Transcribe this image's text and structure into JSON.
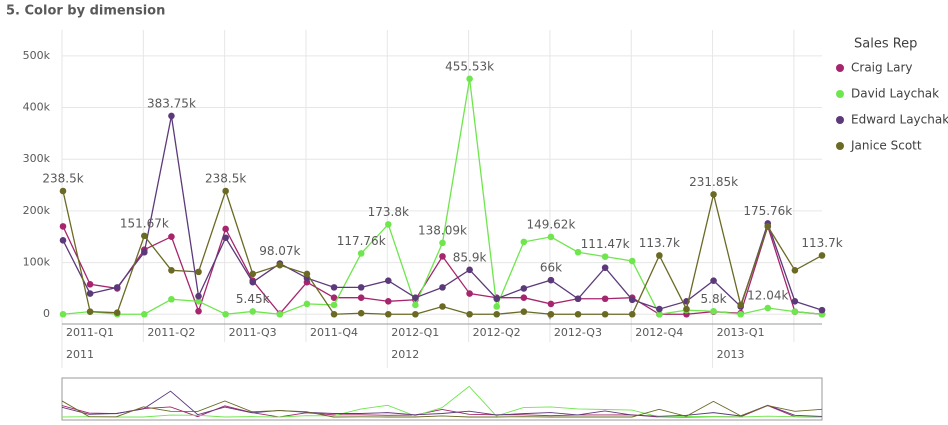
{
  "chart_data": {
    "type": "line",
    "title": "5. Color by dimension",
    "legend_title": "Sales Rep",
    "legend_position": "right",
    "grid": true,
    "categories": [
      "2011-Q1",
      null,
      null,
      "2011-Q2",
      null,
      null,
      "2011-Q3",
      null,
      null,
      "2011-Q4",
      null,
      null,
      "2012-Q1",
      null,
      null,
      "2012-Q2",
      null,
      null,
      "2012-Q3",
      null,
      null,
      "2012-Q4",
      null,
      null,
      "2013-Q1",
      null,
      null,
      null,
      null
    ],
    "category_years": [
      "2011",
      null,
      null,
      null,
      null,
      null,
      null,
      null,
      null,
      null,
      null,
      null,
      "2012",
      null,
      null,
      null,
      null,
      null,
      null,
      null,
      null,
      null,
      null,
      null,
      "2013",
      null,
      null,
      null,
      null
    ],
    "ylim": [
      -15000,
      550000
    ],
    "yticks": [
      0,
      {
        "value": 100000,
        "label": "100k"
      },
      {
        "value": 200000,
        "label": "200k"
      },
      {
        "value": 300000,
        "label": "300k"
      },
      {
        "value": 400000,
        "label": "400k"
      },
      {
        "value": 500000,
        "label": "500k"
      }
    ],
    "series": [
      {
        "name": "Craig Lary",
        "color": "#a6256d",
        "values": [
          170000,
          58000,
          50000,
          125000,
          150000,
          6000,
          165000,
          65000,
          1000,
          62000,
          32000,
          32000,
          25000,
          28000,
          112000,
          40000,
          32000,
          32000,
          20000,
          30000,
          30000,
          32000,
          0,
          0,
          5000,
          2000,
          170000,
          5000,
          0
        ],
        "value_labels": [
          null,
          null,
          null,
          null,
          null,
          null,
          null,
          null,
          null,
          null,
          null,
          null,
          null,
          null,
          null,
          null,
          null,
          null,
          null,
          null,
          null,
          null,
          null,
          null,
          null,
          null,
          null,
          null,
          null
        ]
      },
      {
        "name": "David Laychak",
        "color": "#6fe64d",
        "values": [
          0,
          5000,
          0,
          0,
          29000,
          25000,
          0,
          5450,
          0,
          20000,
          18000,
          117760,
          173800,
          18000,
          138090,
          455530,
          15000,
          140000,
          149620,
          120000,
          111470,
          103000,
          0,
          8000,
          5800,
          0,
          12040,
          5000,
          0
        ],
        "value_labels": [
          null,
          null,
          null,
          null,
          null,
          null,
          null,
          "5.45k",
          null,
          null,
          null,
          "117.76k",
          "173.8k",
          null,
          "138.09k",
          "455.53k",
          null,
          null,
          "149.62k",
          null,
          "111.47k",
          null,
          null,
          null,
          "5.8k",
          null,
          "12.04k",
          null,
          null
        ]
      },
      {
        "name": "Edward Laychak",
        "color": "#5c3a7a",
        "values": [
          143000,
          40000,
          52000,
          120000,
          383750,
          35000,
          148000,
          62000,
          98070,
          70000,
          52000,
          52000,
          65000,
          32000,
          52000,
          85900,
          30000,
          50000,
          66000,
          30000,
          90000,
          28000,
          10000,
          25000,
          65000,
          15000,
          175760,
          25000,
          8000
        ],
        "value_labels": [
          null,
          null,
          null,
          null,
          "383.75k",
          null,
          null,
          null,
          "98.07k",
          null,
          null,
          null,
          null,
          null,
          null,
          "85.9k",
          null,
          null,
          "66k",
          null,
          null,
          null,
          null,
          null,
          null,
          null,
          "175.76k",
          null,
          null
        ]
      },
      {
        "name": "Janice Scott",
        "color": "#6b6a25",
        "values": [
          238500,
          5000,
          3000,
          151670,
          85000,
          82000,
          238500,
          78000,
          95000,
          78000,
          0,
          2000,
          0,
          0,
          15000,
          0,
          0,
          5000,
          0,
          0,
          0,
          0,
          113700,
          10000,
          231850,
          18000,
          170000,
          85000,
          113700
        ],
        "value_labels": [
          "238.5k",
          null,
          null,
          "151.67k",
          null,
          null,
          "238.5k",
          null,
          null,
          null,
          null,
          null,
          null,
          null,
          null,
          null,
          null,
          null,
          null,
          null,
          null,
          null,
          "113.7k",
          null,
          "231.85k",
          null,
          null,
          null,
          "113.7k"
        ]
      }
    ]
  }
}
